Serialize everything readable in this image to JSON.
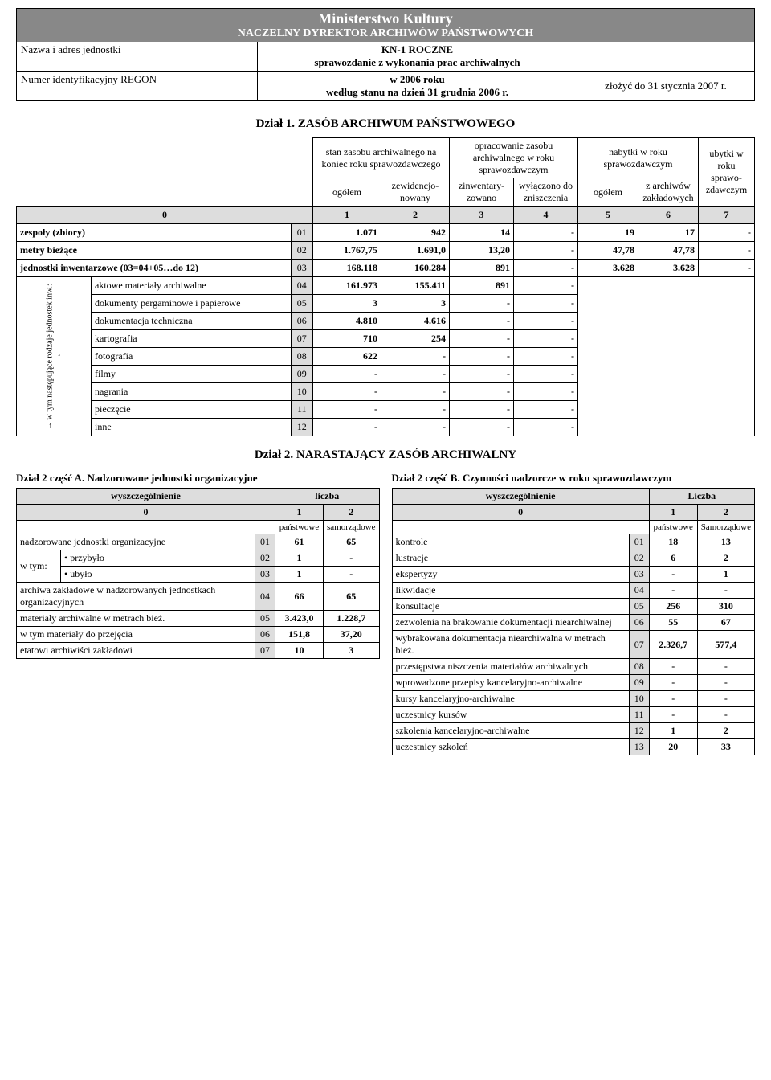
{
  "header": {
    "ministry": "Ministerstwo Kultury",
    "director": "NACZELNY DYREKTOR ARCHIWÓW PAŃSTWOWYCH",
    "left1": "Nazwa i adres jednostki",
    "left2": "Numer identyfikacyjny REGON",
    "mid_title": "KN-1 ROCZNE",
    "mid_sub": "sprawozdanie z wykonania prac archiwalnych",
    "mid_year": "w 2006 roku",
    "mid_date": "według stanu na dzień 31 grudnia 2006 r.",
    "right": "złożyć do 31 stycznia 2007 r."
  },
  "dzial1": {
    "title": "Dział 1. ZASÓB ARCHIWUM PAŃSTWOWEGO",
    "head": {
      "stan": "stan zasobu archiwalnego na koniec roku sprawozdawczego",
      "ogolem1": "ogółem",
      "zewid": "zewidencjo-nowany",
      "oprac": "opracowanie zasobu archiwalnego w roku sprawozdawczym",
      "zinw": "zinwentary-zowano",
      "wyl": "wyłączono do zniszczenia",
      "nabytki": "nabytki w roku sprawozdawczym",
      "ogolem2": "ogółem",
      "zarch": "z archiwów zakładowych",
      "ubytki": "ubytki w roku sprawo-zdawczym"
    },
    "idx": [
      "0",
      "1",
      "2",
      "3",
      "4",
      "5",
      "6",
      "7"
    ],
    "vlabel": "→ w tym następujące rodzaje jednostek inw.: →",
    "rows": [
      {
        "label": "zespoły (zbiory)",
        "code": "01",
        "c1": "1.071",
        "c2": "942",
        "c3": "14",
        "c4": "-",
        "c5": "19",
        "c6": "17",
        "c7": "-"
      },
      {
        "label": "metry bieżące",
        "code": "02",
        "c1": "1.767,75",
        "c2": "1.691,0",
        "c3": "13,20",
        "c4": "-",
        "c5": "47,78",
        "c6": "47,78",
        "c7": "-"
      },
      {
        "label": "jednostki inwentarzowe (03=04+05…do 12)",
        "code": "03",
        "c1": "168.118",
        "c2": "160.284",
        "c3": "891",
        "c4": "-",
        "c5": "3.628",
        "c6": "3.628",
        "c7": "-"
      },
      {
        "label": "aktowe materiały archiwalne",
        "code": "04",
        "c1": "161.973",
        "c2": "155.411",
        "c3": "891",
        "c4": "-"
      },
      {
        "label": "dokumenty pergaminowe i papierowe",
        "code": "05",
        "c1": "3",
        "c2": "3",
        "c3": "-",
        "c4": "-"
      },
      {
        "label": "dokumentacja techniczna",
        "code": "06",
        "c1": "4.810",
        "c2": "4.616",
        "c3": "-",
        "c4": "-"
      },
      {
        "label": "kartografia",
        "code": "07",
        "c1": "710",
        "c2": "254",
        "c3": "-",
        "c4": "-"
      },
      {
        "label": "fotografia",
        "code": "08",
        "c1": "622",
        "c2": "-",
        "c3": "-",
        "c4": "-"
      },
      {
        "label": "filmy",
        "code": "09",
        "c1": "-",
        "c2": "-",
        "c3": "-",
        "c4": "-"
      },
      {
        "label": "nagrania",
        "code": "10",
        "c1": "-",
        "c2": "-",
        "c3": "-",
        "c4": "-"
      },
      {
        "label": "pieczęcie",
        "code": "11",
        "c1": "-",
        "c2": "-",
        "c3": "-",
        "c4": "-"
      },
      {
        "label": "inne",
        "code": "12",
        "c1": "-",
        "c2": "-",
        "c3": "-",
        "c4": "-"
      }
    ]
  },
  "dzial2": {
    "title": "Dział 2. NARASTAJĄCY ZASÓB ARCHIWALNY",
    "partA_title": "Dział 2 część A. Nadzorowane jednostki organizacyjne",
    "partB_title": "Dział 2 część B. Czynności nadzorcze w roku sprawozdawczym",
    "hA": {
      "wysz": "wyszczególnienie",
      "liczba": "liczba",
      "c0": "0",
      "c1": "1",
      "c2": "2",
      "pan": "państwowe",
      "sam": "samorządowe"
    },
    "hB": {
      "wysz": "wyszczególnienie",
      "liczba": "Liczba",
      "c0": "0",
      "c1": "1",
      "c2": "2",
      "pan": "państwowe",
      "sam": "Samorządowe"
    },
    "rowsA": [
      {
        "label": "nadzorowane jednostki organizacyjne",
        "code": "01",
        "c1": "61",
        "c2": "65"
      },
      {
        "label": "w tym:",
        "sub": "• przybyło",
        "code": "02",
        "c1": "1",
        "c2": "-"
      },
      {
        "label": "",
        "sub": "• ubyło",
        "code": "03",
        "c1": "1",
        "c2": "-"
      },
      {
        "label": "archiwa zakładowe w nadzorowanych jednostkach organizacyjnych",
        "code": "04",
        "c1": "66",
        "c2": "65"
      },
      {
        "label": "materiały archiwalne w metrach bież.",
        "code": "05",
        "c1": "3.423,0",
        "c2": "1.228,7"
      },
      {
        "label": "w tym materiały do przejęcia",
        "code": "06",
        "c1": "151,8",
        "c2": "37,20"
      },
      {
        "label": "etatowi archiwiści zakładowi",
        "code": "07",
        "c1": "10",
        "c2": "3"
      }
    ],
    "rowsB": [
      {
        "label": "kontrole",
        "code": "01",
        "c1": "18",
        "c2": "13"
      },
      {
        "label": "lustracje",
        "code": "02",
        "c1": "6",
        "c2": "2"
      },
      {
        "label": "ekspertyzy",
        "code": "03",
        "c1": "-",
        "c2": "1"
      },
      {
        "label": "likwidacje",
        "code": "04",
        "c1": "-",
        "c2": "-"
      },
      {
        "label": "konsultacje",
        "code": "05",
        "c1": "256",
        "c2": "310"
      },
      {
        "label": "zezwolenia na brakowanie dokumentacji niearchiwalnej",
        "code": "06",
        "c1": "55",
        "c2": "67"
      },
      {
        "label": "wybrakowana dokumentacja niearchiwalna w metrach bież.",
        "code": "07",
        "c1": "2.326,7",
        "c2": "577,4"
      },
      {
        "label": "przestępstwa niszczenia materiałów archiwalnych",
        "code": "08",
        "c1": "-",
        "c2": "-"
      },
      {
        "label": "wprowadzone przepisy kancelaryjno-archiwalne",
        "code": "09",
        "c1": "-",
        "c2": "-"
      },
      {
        "label": "kursy kancelaryjno-archiwalne",
        "code": "10",
        "c1": "-",
        "c2": "-"
      },
      {
        "label": "uczestnicy kursów",
        "code": "11",
        "c1": "-",
        "c2": "-"
      },
      {
        "label": "szkolenia kancelaryjno-archiwalne",
        "code": "12",
        "c1": "1",
        "c2": "2"
      },
      {
        "label": "uczestnicy szkoleń",
        "code": "13",
        "c1": "20",
        "c2": "33"
      }
    ]
  }
}
